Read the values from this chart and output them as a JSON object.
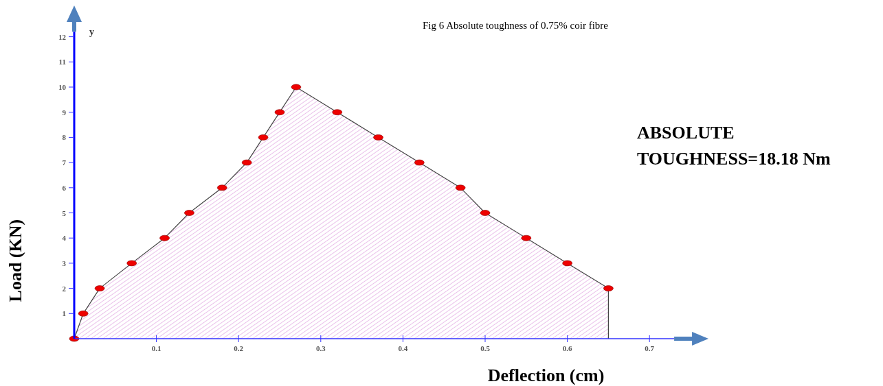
{
  "chart_data": {
    "type": "area",
    "title": "Fig 6 Absolute toughness of 0.75% coir fibre",
    "xlabel": "Deflection (cm)",
    "ylabel": "Load (KN)",
    "annotations": [
      "y",
      "ABSOLUTE\nTOUGHNESS=18.18 Nm"
    ],
    "series": [
      {
        "color": "#cc66cc",
        "x": [
          0,
          0.011,
          0.031,
          0.07,
          0.11,
          0.14,
          0.18,
          0.21,
          0.23,
          0.25,
          0.27,
          0.32,
          0.37,
          0.42,
          0.47,
          0.5,
          0.55,
          0.6,
          0.65
        ],
        "values": [
          0,
          1,
          2,
          3,
          4,
          5,
          6,
          7,
          8,
          9,
          10,
          9,
          8,
          7,
          6,
          5,
          4,
          3,
          2
        ]
      }
    ],
    "xlim": [
      0,
      0.73
    ],
    "ylim": [
      0,
      12.2
    ],
    "xticks": [
      0.1,
      0.2,
      0.3,
      0.4,
      0.5,
      0.6,
      0.7
    ],
    "yticks": [
      1,
      2,
      3,
      4,
      5,
      6,
      7,
      8,
      9,
      10,
      11,
      12
    ],
    "marker": "circle",
    "grid": false
  }
}
